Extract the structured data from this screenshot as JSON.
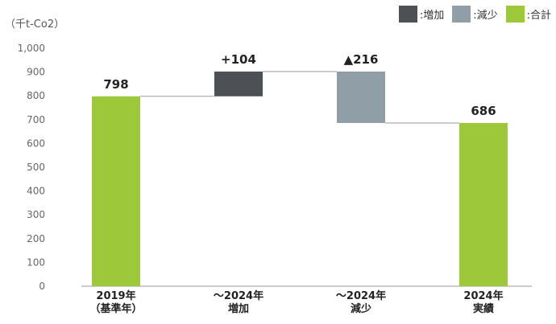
{
  "legend": {
    "items": [
      {
        "label": ":増加",
        "color": "#4d5155"
      },
      {
        "label": ":減少",
        "color": "#8f9ea7"
      },
      {
        "label": ":合計",
        "color": "#9dc83a"
      }
    ]
  },
  "chart_data": {
    "type": "bar",
    "subtype": "waterfall",
    "unit_label": "（千t-Co2）",
    "ylim": [
      0,
      1000
    ],
    "y_ticks": [
      "0",
      "100",
      "200",
      "300",
      "400",
      "500",
      "600",
      "700",
      "800",
      "900",
      "1,000"
    ],
    "grid": false,
    "legend_position": "top-right",
    "categories": [
      [
        "2019年",
        "（基準年）"
      ],
      [
        "～2024年",
        "増加"
      ],
      [
        "～2024年",
        "減少"
      ],
      [
        "2024年",
        "実績"
      ]
    ],
    "bars": [
      {
        "kind": "total",
        "base": 0,
        "top": 798,
        "label": "798",
        "color": "#9dc83a"
      },
      {
        "kind": "increase",
        "base": 798,
        "top": 902,
        "label": "+104",
        "color": "#4d5155"
      },
      {
        "kind": "decrease",
        "base": 686,
        "top": 902,
        "label": "▲216",
        "color": "#8f9ea7"
      },
      {
        "kind": "total",
        "base": 0,
        "top": 686,
        "label": "686",
        "color": "#9dc83a"
      }
    ]
  }
}
